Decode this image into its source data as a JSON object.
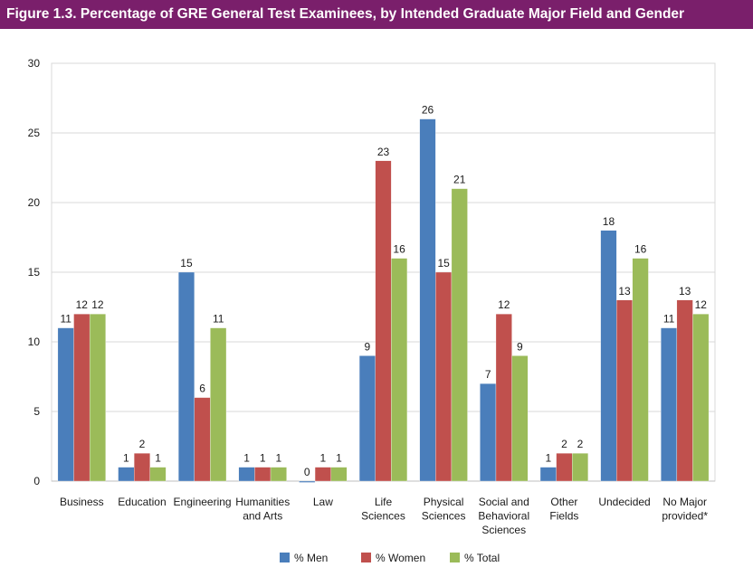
{
  "header": {
    "title": "Figure 1.3. Percentage of GRE General Test Examinees, by Intended Graduate Major Field and Gender"
  },
  "chart_data": {
    "type": "bar",
    "title": "Figure 1.3. Percentage of GRE General Test Examinees, by Intended Graduate Major Field and Gender",
    "xlabel": "",
    "ylabel": "",
    "ylim": [
      0,
      30
    ],
    "yticks": [
      0,
      5,
      10,
      15,
      20,
      25,
      30
    ],
    "grid": true,
    "legend": "bottom-center",
    "categories": [
      [
        "Business"
      ],
      [
        "Education"
      ],
      [
        "Engineering"
      ],
      [
        "Humanities",
        "and Arts"
      ],
      [
        "Law"
      ],
      [
        "Life",
        "Sciences"
      ],
      [
        "Physical",
        "Sciences"
      ],
      [
        "Social and",
        "Behavioral",
        "Sciences"
      ],
      [
        "Other",
        "Fields"
      ],
      [
        "Undecided"
      ],
      [
        "No Major",
        "provided*"
      ]
    ],
    "series": [
      {
        "name": "% Men",
        "color": "#4a7ebb",
        "values": [
          11,
          1,
          15,
          1,
          0,
          9,
          26,
          7,
          1,
          18,
          11
        ]
      },
      {
        "name": "% Women",
        "color": "#c0504d",
        "values": [
          12,
          2,
          6,
          1,
          1,
          23,
          15,
          12,
          2,
          13,
          13
        ]
      },
      {
        "name": "% Total",
        "color": "#9bbb59",
        "values": [
          12,
          1,
          11,
          1,
          1,
          16,
          21,
          9,
          2,
          16,
          12
        ]
      }
    ]
  }
}
